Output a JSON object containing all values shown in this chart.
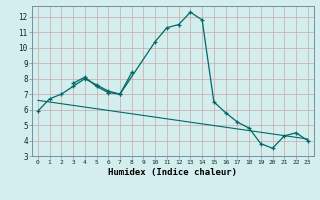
{
  "xlabel": "Humidex (Indice chaleur)",
  "background_color": "#d4eeee",
  "grid_color_major": "#b8d4d4",
  "grid_color_minor": "#c8e4e4",
  "line_color": "#006868",
  "xlim": [
    -0.5,
    23.5
  ],
  "ylim": [
    3,
    12.7
  ],
  "xticks": [
    0,
    1,
    2,
    3,
    4,
    5,
    6,
    7,
    8,
    9,
    10,
    11,
    12,
    13,
    14,
    15,
    16,
    17,
    18,
    19,
    20,
    21,
    22,
    23
  ],
  "yticks": [
    3,
    4,
    5,
    6,
    7,
    8,
    9,
    10,
    11,
    12
  ],
  "series_main": {
    "x": [
      0,
      1,
      2,
      3,
      4,
      5,
      6,
      7,
      10,
      11,
      12,
      13,
      14,
      15,
      16,
      17,
      18,
      19,
      20,
      21,
      22,
      23
    ],
    "y": [
      5.9,
      6.7,
      7.0,
      7.5,
      8.0,
      7.6,
      7.2,
      7.0,
      10.4,
      11.3,
      11.5,
      12.3,
      11.8,
      6.5,
      5.8,
      5.2,
      4.8,
      3.8,
      3.5,
      4.3,
      4.5,
      4.0
    ]
  },
  "series_secondary": {
    "x": [
      3,
      4,
      5,
      6,
      7,
      8
    ],
    "y": [
      7.7,
      8.1,
      7.5,
      7.1,
      7.0,
      8.4
    ]
  },
  "regression_line": {
    "x": [
      0,
      23
    ],
    "y": [
      6.6,
      4.1
    ]
  }
}
